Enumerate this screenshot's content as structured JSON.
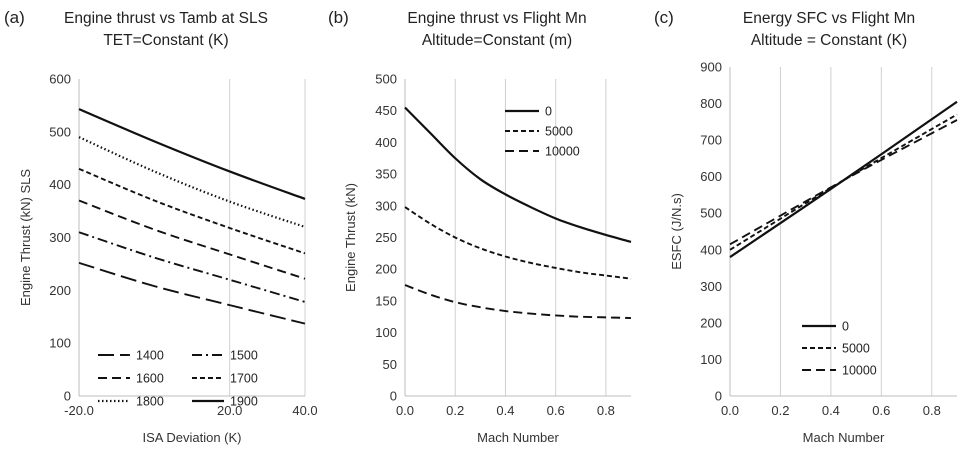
{
  "chart_data": [
    {
      "type": "line",
      "panel_label": "(a)",
      "title": "Engine thrust vs Tamb at SLS",
      "subtitle": "TET=Constant (K)",
      "xlabel": "ISA Deviation (K)",
      "ylabel": "Engine Thrust (kN) SLS",
      "xlim": [
        -20,
        40
      ],
      "ylim": [
        0,
        600
      ],
      "xticks": [
        "-20.0",
        "20.0",
        "40.0"
      ],
      "yticks": [
        "0",
        "100",
        "200",
        "300",
        "400",
        "500",
        "600"
      ],
      "grid": "vertical",
      "legend": "bottom",
      "series": [
        {
          "name": "1400",
          "dash": "longdash",
          "x": [
            -20,
            0,
            20,
            40
          ],
          "values": [
            252,
            208,
            172,
            137
          ]
        },
        {
          "name": "1500",
          "dash": "dashdot",
          "x": [
            -20,
            0,
            20,
            40
          ],
          "values": [
            310,
            262,
            220,
            178
          ]
        },
        {
          "name": "1600",
          "dash": "dash",
          "x": [
            -20,
            0,
            20,
            40
          ],
          "values": [
            370,
            315,
            268,
            222
          ]
        },
        {
          "name": "1700",
          "dash": "shortdash",
          "x": [
            -20,
            0,
            20,
            40
          ],
          "values": [
            430,
            370,
            318,
            270
          ]
        },
        {
          "name": "1800",
          "dash": "dot",
          "x": [
            -20,
            0,
            20,
            40
          ],
          "values": [
            490,
            425,
            368,
            320
          ]
        },
        {
          "name": "1900",
          "dash": "solid",
          "x": [
            -20,
            0,
            20,
            40
          ],
          "values": [
            543,
            482,
            425,
            373
          ]
        }
      ]
    },
    {
      "type": "line",
      "panel_label": "(b)",
      "title": "Engine thrust vs Flight Mn",
      "subtitle": "Altitude=Constant (m)",
      "xlabel": "Mach Number",
      "ylabel": "Engine Thrust (kN)",
      "xlim": [
        0,
        0.9
      ],
      "ylim": [
        0,
        500
      ],
      "xticks": [
        "0.0",
        "0.2",
        "0.4",
        "0.6",
        "0.8"
      ],
      "yticks": [
        "0",
        "50",
        "100",
        "150",
        "200",
        "250",
        "300",
        "350",
        "400",
        "450",
        "500"
      ],
      "grid": "vertical",
      "legend": "top-right",
      "series": [
        {
          "name": "0",
          "dash": "solid",
          "x": [
            0,
            0.1,
            0.2,
            0.3,
            0.4,
            0.5,
            0.6,
            0.7,
            0.8,
            0.9
          ],
          "values": [
            455,
            415,
            375,
            342,
            318,
            298,
            280,
            266,
            254,
            243
          ]
        },
        {
          "name": "5000",
          "dash": "shortdash",
          "x": [
            0,
            0.1,
            0.2,
            0.3,
            0.4,
            0.5,
            0.6,
            0.7,
            0.8,
            0.9
          ],
          "values": [
            298,
            272,
            250,
            233,
            220,
            210,
            202,
            195,
            190,
            185
          ]
        },
        {
          "name": "10000",
          "dash": "dash",
          "x": [
            0,
            0.1,
            0.2,
            0.3,
            0.4,
            0.5,
            0.6,
            0.7,
            0.8,
            0.9
          ],
          "values": [
            175,
            160,
            148,
            140,
            134,
            130,
            127,
            125,
            124,
            123
          ]
        }
      ]
    },
    {
      "type": "line",
      "panel_label": "(c)",
      "title": "Energy SFC vs Flight Mn",
      "subtitle": "Altitude = Constant (K)",
      "xlabel": "Mach Number",
      "ylabel": "ESFC (J/N.s)",
      "xlim": [
        0,
        0.9
      ],
      "ylim": [
        0,
        900
      ],
      "xticks": [
        "0.0",
        "0.2",
        "0.4",
        "0.6",
        "0.8"
      ],
      "yticks": [
        "0",
        "100",
        "200",
        "300",
        "400",
        "500",
        "600",
        "700",
        "800",
        "900"
      ],
      "grid": "vertical",
      "legend": "bottom-center",
      "series": [
        {
          "name": "0",
          "dash": "solid",
          "x": [
            0,
            0.45,
            0.9
          ],
          "values": [
            380,
            590,
            805
          ]
        },
        {
          "name": "5000",
          "dash": "shortdash",
          "x": [
            0,
            0.45,
            0.9
          ],
          "values": [
            400,
            590,
            770
          ]
        },
        {
          "name": "10000",
          "dash": "dash",
          "x": [
            0,
            0.45,
            0.9
          ],
          "values": [
            415,
            590,
            755
          ]
        }
      ]
    }
  ]
}
